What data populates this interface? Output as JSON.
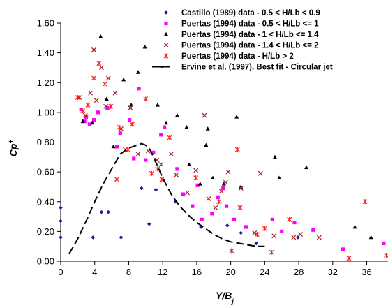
{
  "chart_data": {
    "type": "scatter",
    "xlabel": "Y/B_j",
    "ylabel": "Cp+",
    "xlim": [
      0,
      38.5
    ],
    "ylim": [
      0,
      1.6
    ],
    "xticks": [
      0,
      4,
      8,
      12,
      16,
      20,
      24,
      28,
      32,
      36
    ],
    "xtick_labels": [
      "0",
      "4",
      "8",
      "12",
      "16",
      "20",
      "24",
      "28",
      "32",
      "36"
    ],
    "yticks": [
      0,
      0.2,
      0.4,
      0.6,
      0.8,
      1.0,
      1.2,
      1.4,
      1.6
    ],
    "ytick_labels": [
      "0.00",
      "0.20",
      "0.40",
      "0.60",
      "0.80",
      "1.00",
      "1.20",
      "1.40",
      "1.60"
    ],
    "grid": false,
    "legend_position": "top-right",
    "series": [
      {
        "name": "Castillo (1989) data - 0.5 < H/Lb < 0.9",
        "marker": "diamond",
        "color": "#1a1aa6",
        "points": [
          [
            0,
            0.36
          ],
          [
            0,
            0.27
          ],
          [
            0,
            0.16
          ],
          [
            3.8,
            0.16
          ],
          [
            4.8,
            0.33
          ],
          [
            5.6,
            0.33
          ],
          [
            7.1,
            0.16
          ],
          [
            9.5,
            0.49
          ],
          [
            10.4,
            0.25
          ],
          [
            11.2,
            0.48
          ],
          [
            13.5,
            0.4
          ],
          [
            16.5,
            0.23
          ],
          [
            19.6,
            0.24
          ],
          [
            21.2,
            0.19
          ],
          [
            23.0,
            0.12
          ],
          [
            27.9,
            0.16
          ]
        ]
      },
      {
        "name": "Puertas (1994) data - 0.5 < H/Lb <= 1",
        "marker": "square",
        "color": "#ff00ff",
        "points": [
          [
            2.4,
            1.02
          ],
          [
            2.8,
            0.94
          ],
          [
            3.0,
            0.97
          ],
          [
            3.4,
            0.92
          ],
          [
            3.9,
            0.95
          ],
          [
            4.4,
            1.0
          ],
          [
            5.5,
            1.03
          ],
          [
            6.6,
            0.77
          ],
          [
            7.0,
            0.86
          ],
          [
            8.1,
            0.95
          ],
          [
            8.6,
            0.69
          ],
          [
            9.2,
            1.16
          ],
          [
            10.0,
            0.68
          ],
          [
            10.9,
            0.73
          ],
          [
            11.8,
            0.85
          ],
          [
            12.2,
            0.9
          ],
          [
            13.7,
            0.62
          ],
          [
            14.4,
            0.45
          ],
          [
            15.5,
            0.37
          ],
          [
            16.1,
            0.51
          ],
          [
            16.6,
            0.28
          ],
          [
            17.8,
            0.32
          ],
          [
            18.5,
            0.43
          ],
          [
            19.1,
            0.49
          ],
          [
            19.5,
            0.37
          ],
          [
            20.4,
            0.28
          ],
          [
            21.8,
            0.23
          ],
          [
            24.9,
            0.28
          ],
          [
            26.0,
            0.2
          ],
          [
            27.5,
            0.26
          ],
          [
            29.7,
            0.21
          ],
          [
            33.2,
            0.08
          ],
          [
            38.0,
            0.12
          ]
        ]
      },
      {
        "name": "Puertas (1994) data - 1 < H/Lb <= 1.4",
        "marker": "triangle",
        "color": "#000000",
        "points": [
          [
            2.1,
            1.1
          ],
          [
            2.6,
            0.94
          ],
          [
            3.7,
            0.93
          ],
          [
            4.7,
            1.51
          ],
          [
            5.4,
            1.09
          ],
          [
            6.2,
            0.77
          ],
          [
            7.4,
            1.22
          ],
          [
            8.3,
            1.05
          ],
          [
            9.1,
            1.27
          ],
          [
            9.9,
            1.44
          ],
          [
            11.4,
            1.05
          ],
          [
            12.4,
            0.93
          ],
          [
            13.7,
            0.98
          ],
          [
            14.8,
            0.9
          ],
          [
            15.1,
            0.65
          ],
          [
            16.4,
            0.52
          ],
          [
            17.1,
            0.78
          ],
          [
            17.3,
            0.89
          ],
          [
            17.9,
            0.56
          ],
          [
            19.2,
            0.52
          ],
          [
            20.7,
            0.97
          ],
          [
            21.2,
            0.5
          ],
          [
            25.2,
            0.7
          ],
          [
            25.7,
            0.56
          ],
          [
            28.9,
            0.63
          ],
          [
            34.6,
            0.23
          ],
          [
            36.5,
            0.16
          ]
        ]
      },
      {
        "name": "Puertas (1994) data - 1.4 < H/Lb <= 2",
        "marker": "x",
        "color": "#a52a2a",
        "points": [
          [
            2.2,
            1.1
          ],
          [
            2.9,
            0.98
          ],
          [
            3.5,
            1.13
          ],
          [
            3.9,
            1.42
          ],
          [
            4.2,
            1.08
          ],
          [
            4.8,
            1.3
          ],
          [
            5.3,
            1.04
          ],
          [
            5.6,
            1.23
          ],
          [
            6.4,
            1.13
          ],
          [
            7.1,
            0.89
          ],
          [
            7.6,
            0.75
          ],
          [
            8.2,
            1.03
          ],
          [
            9.1,
            0.72
          ],
          [
            10.3,
            0.74
          ],
          [
            11.3,
            0.68
          ],
          [
            11.8,
            0.65
          ],
          [
            13.0,
            0.72
          ],
          [
            13.6,
            0.58
          ],
          [
            14.9,
            0.46
          ],
          [
            15.9,
            0.61
          ],
          [
            16.9,
            0.98
          ],
          [
            17.4,
            0.42
          ],
          [
            18.2,
            0.36
          ],
          [
            18.9,
            0.47
          ],
          [
            19.4,
            0.53
          ],
          [
            19.7,
            0.6
          ],
          [
            21.2,
            0.49
          ],
          [
            22.8,
            0.19
          ],
          [
            23.5,
            0.59
          ],
          [
            25.1,
            0.17
          ],
          [
            26.9,
            0.28
          ],
          [
            27.4,
            0.16
          ],
          [
            28.2,
            0.18
          ],
          [
            30.4,
            0.16
          ]
        ]
      },
      {
        "name": "Puertas (1994) data - H/Lb > 2",
        "marker": "asterisk",
        "color": "#ff2020",
        "points": [
          [
            2.0,
            1.1
          ],
          [
            2.6,
            1.01
          ],
          [
            3.2,
            1.05
          ],
          [
            3.9,
            1.23
          ],
          [
            4.5,
            1.33
          ],
          [
            5.2,
            1.19
          ],
          [
            5.9,
            1.04
          ],
          [
            6.6,
            0.55
          ],
          [
            6.9,
            0.9
          ],
          [
            7.9,
            0.75
          ],
          [
            8.4,
            0.92
          ],
          [
            10.0,
            1.09
          ],
          [
            10.7,
            0.59
          ],
          [
            11.4,
            0.62
          ],
          [
            11.9,
            0.55
          ],
          [
            12.8,
            0.83
          ],
          [
            15.9,
            0.56
          ],
          [
            18.6,
            0.4
          ],
          [
            20.1,
            0.07
          ],
          [
            20.8,
            0.75
          ],
          [
            21.1,
            0.36
          ],
          [
            23.1,
            0.18
          ],
          [
            24.0,
            0.22
          ],
          [
            24.8,
            0.06
          ],
          [
            26.9,
            0.28
          ],
          [
            33.9,
            0.02
          ],
          [
            35.8,
            0.4
          ],
          [
            38.3,
            0.04
          ]
        ]
      },
      {
        "name": "Ervine et al. (1997). Best fit - Circular jet",
        "type": "line",
        "style": "dashed",
        "color": "#000000",
        "points": [
          [
            1.0,
            0.05
          ],
          [
            2.0,
            0.15
          ],
          [
            3.0,
            0.27
          ],
          [
            4.0,
            0.4
          ],
          [
            5.0,
            0.52
          ],
          [
            6.0,
            0.62
          ],
          [
            7.0,
            0.72
          ],
          [
            8.0,
            0.76
          ],
          [
            9.0,
            0.78
          ],
          [
            9.5,
            0.79
          ],
          [
            10.0,
            0.78
          ],
          [
            10.5,
            0.75
          ],
          [
            11.0,
            0.69
          ],
          [
            12.0,
            0.56
          ],
          [
            13.0,
            0.45
          ],
          [
            14.0,
            0.37
          ],
          [
            15.0,
            0.31
          ],
          [
            16.0,
            0.26
          ],
          [
            17.0,
            0.22
          ],
          [
            18.0,
            0.18
          ],
          [
            19.0,
            0.15
          ],
          [
            20.0,
            0.13
          ],
          [
            21.0,
            0.12
          ],
          [
            22.0,
            0.11
          ],
          [
            23.0,
            0.1
          ],
          [
            24.0,
            0.1
          ]
        ]
      }
    ]
  }
}
